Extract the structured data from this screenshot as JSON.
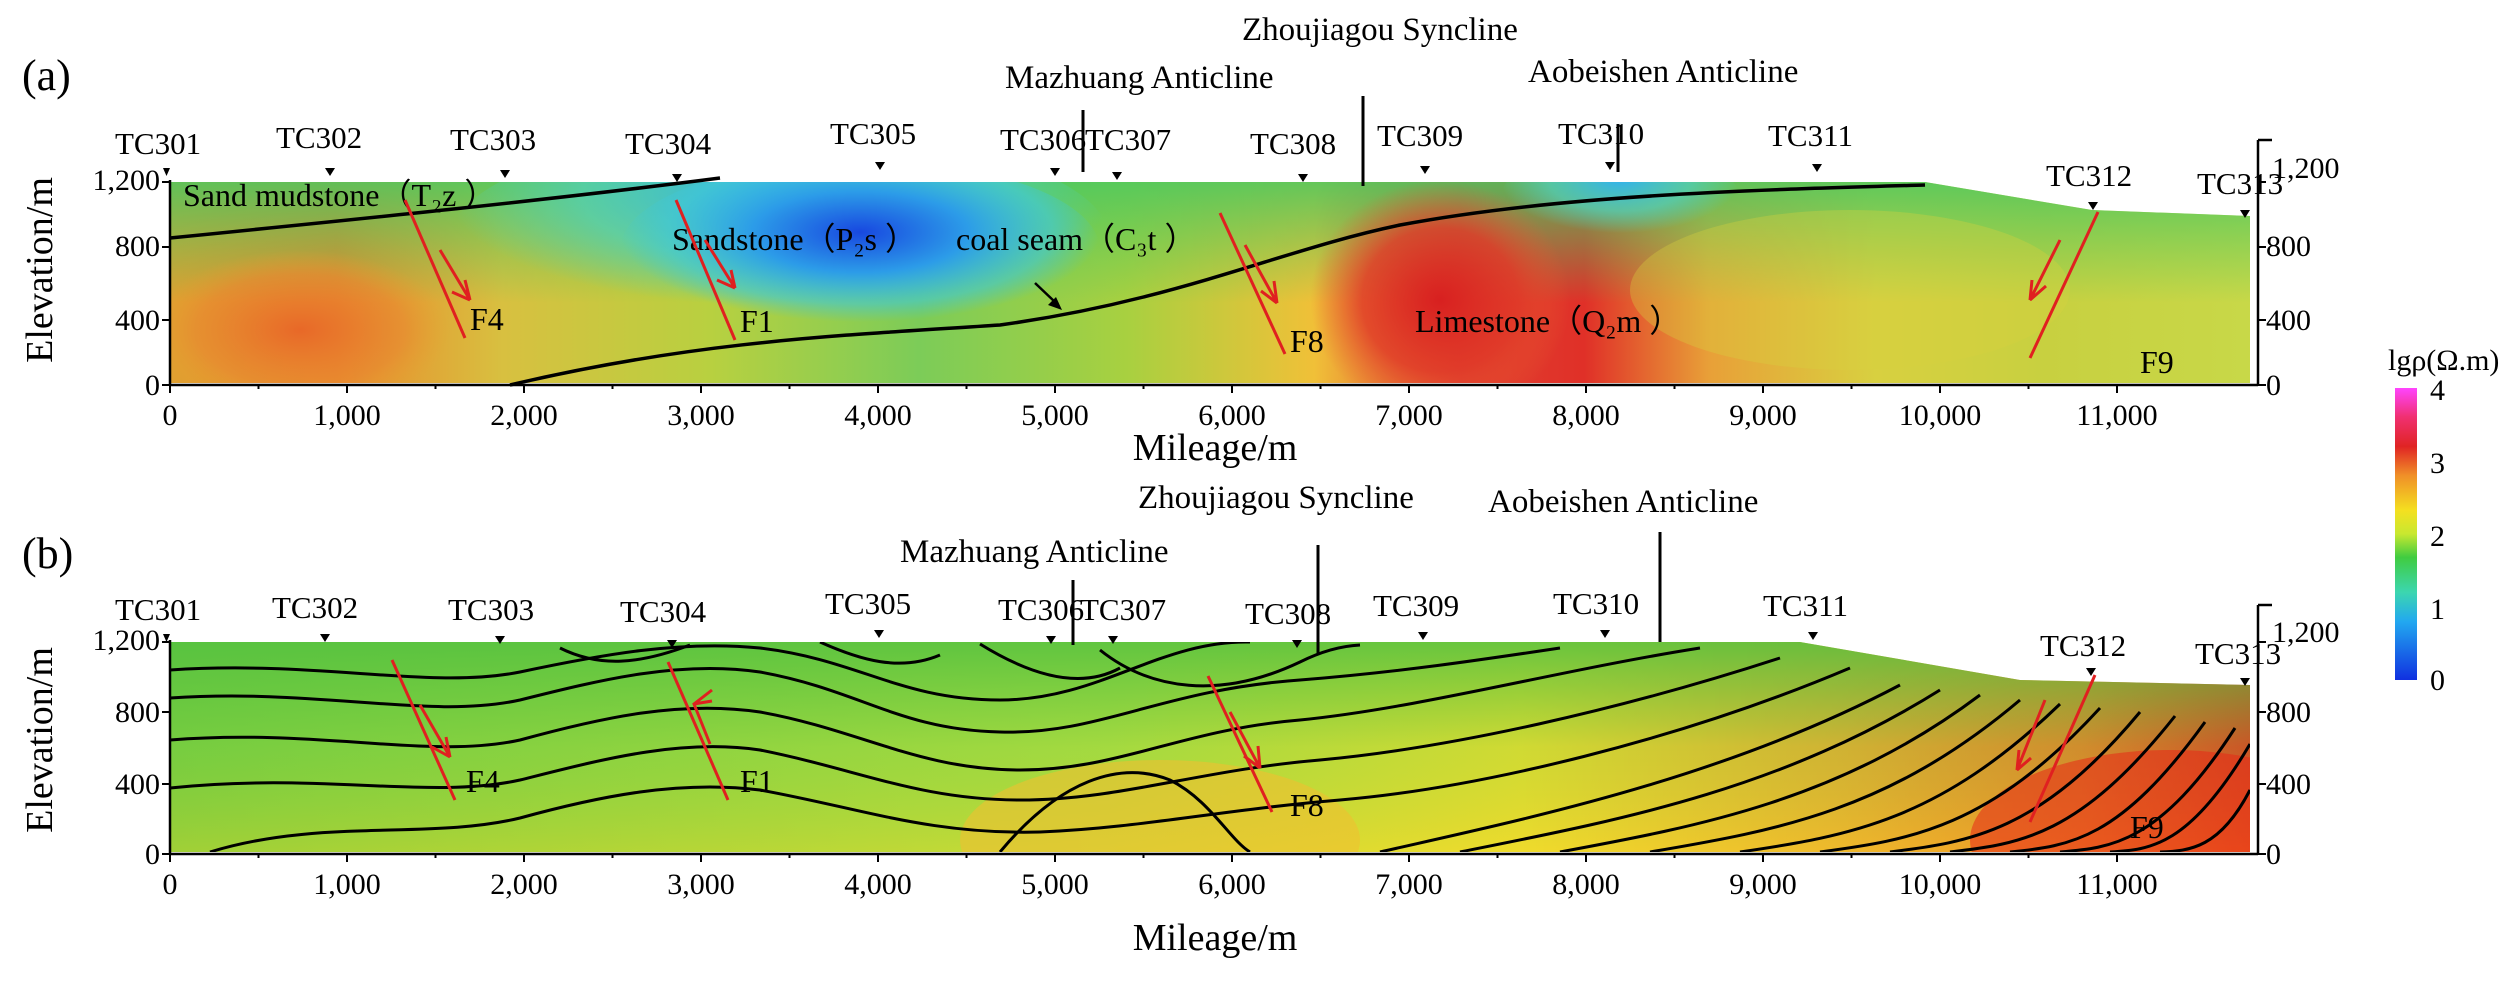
{
  "panels": [
    {
      "label": "(a)",
      "stations": [
        "TC301",
        "TC302",
        "TC303",
        "TC304",
        "TC305",
        "TC306",
        "TC307",
        "TC308",
        "TC309",
        "TC310",
        "TC311",
        "TC312",
        "TC313"
      ],
      "structures": [
        "Mazhuang Anticline",
        "Zhoujiagou Syncline",
        "Aobeishen Anticline"
      ],
      "geology": [
        "Sand mudstone（T₂z ）",
        "Sandstone（P₂s ）",
        "coal seam（C₃t ）",
        "Limestone（Q₂m ）"
      ],
      "faults": [
        "F4",
        "F1",
        "F8",
        "F9"
      ]
    },
    {
      "label": "(b)",
      "stations": [
        "TC301",
        "TC302",
        "TC303",
        "TC304",
        "TC305",
        "TC306",
        "TC307",
        "TC308",
        "TC309",
        "TC310",
        "TC311",
        "TC312",
        "TC313"
      ],
      "structures": [
        "Mazhuang Anticline",
        "Zhoujiagou Syncline",
        "Aobeishen Anticline"
      ],
      "faults": [
        "F4",
        "F1",
        "F8",
        "F9"
      ]
    }
  ],
  "x_axis": {
    "label": "Mileage/m",
    "ticks": [
      "0",
      "1,000",
      "2,000",
      "3,000",
      "4,000",
      "5,000",
      "6,000",
      "7,000",
      "8,000",
      "9,000",
      "10,000",
      "11,000"
    ]
  },
  "y_axis": {
    "label": "Elevation/m",
    "ticks": [
      "0",
      "400",
      "800",
      "1,200"
    ],
    "right_ticks": [
      "0",
      "400",
      "800",
      "1,200"
    ]
  },
  "colorbar": {
    "label": "lgρ(Ω.m)",
    "ticks": [
      "0",
      "1",
      "2",
      "3",
      "4"
    ],
    "colors": [
      "#1030e0",
      "#22c8f0",
      "#3fd23f",
      "#f0f020",
      "#f08020",
      "#e02020",
      "#ff40ff"
    ]
  }
}
